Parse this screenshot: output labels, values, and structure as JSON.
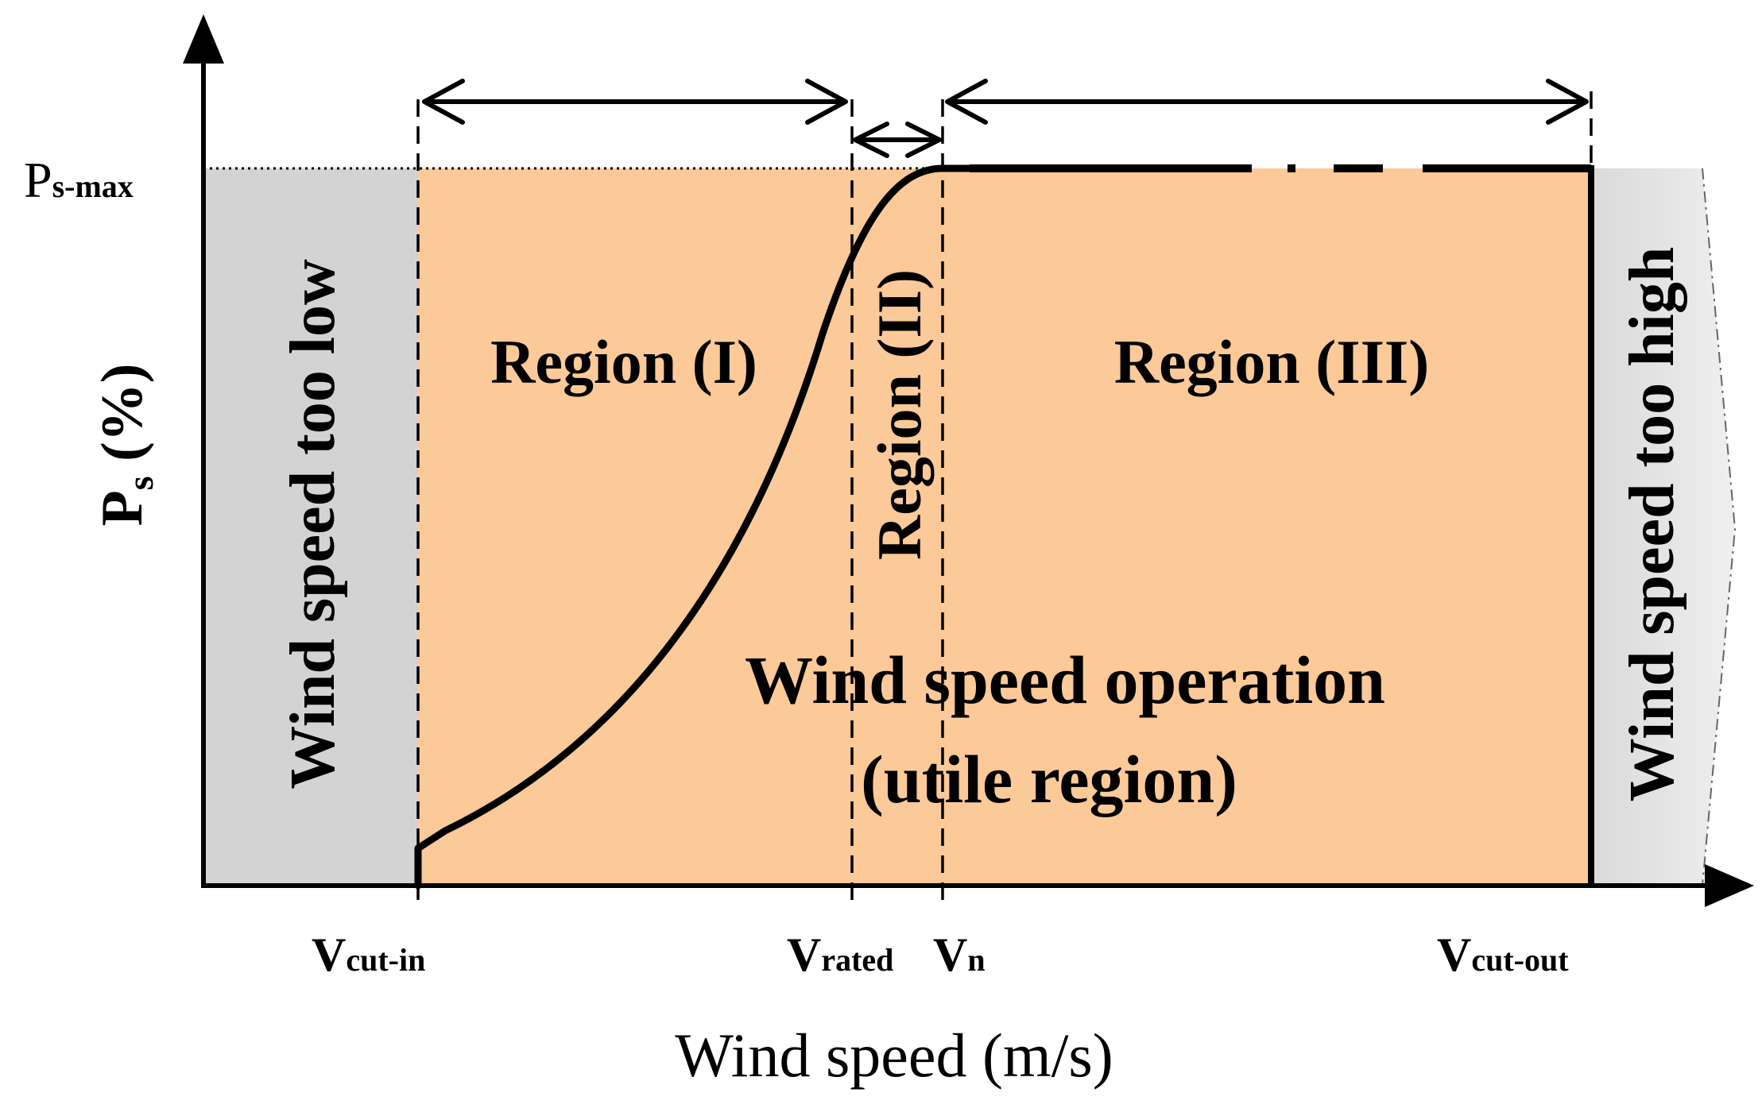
{
  "diagram": {
    "y_axis": {
      "symbol": "P",
      "sub": "s",
      "unit": " (%)"
    },
    "y_max": {
      "symbol": "P",
      "sub": "s-max"
    },
    "x_axis_label": "Wind speed (m/s)",
    "x_ticks": [
      {
        "symbol": "V",
        "sub": "cut-in"
      },
      {
        "symbol": "V",
        "sub": "rated"
      },
      {
        "symbol": "V",
        "sub": "n"
      },
      {
        "symbol": "V",
        "sub": "cut-out"
      }
    ],
    "zones": {
      "low": "Wind speed too low",
      "high": "Wind speed too high"
    },
    "regions": {
      "r1": "Region (I)",
      "r2": "Region (II)",
      "r3": "Region (III)"
    },
    "operation": {
      "line1": "Wind speed operation",
      "line2": "(utile region)"
    },
    "colors": {
      "operating_fill": "#FCC998",
      "low_fill": "#D3D3D3",
      "high_fill": "#DCDCDC",
      "line": "#000000"
    }
  }
}
